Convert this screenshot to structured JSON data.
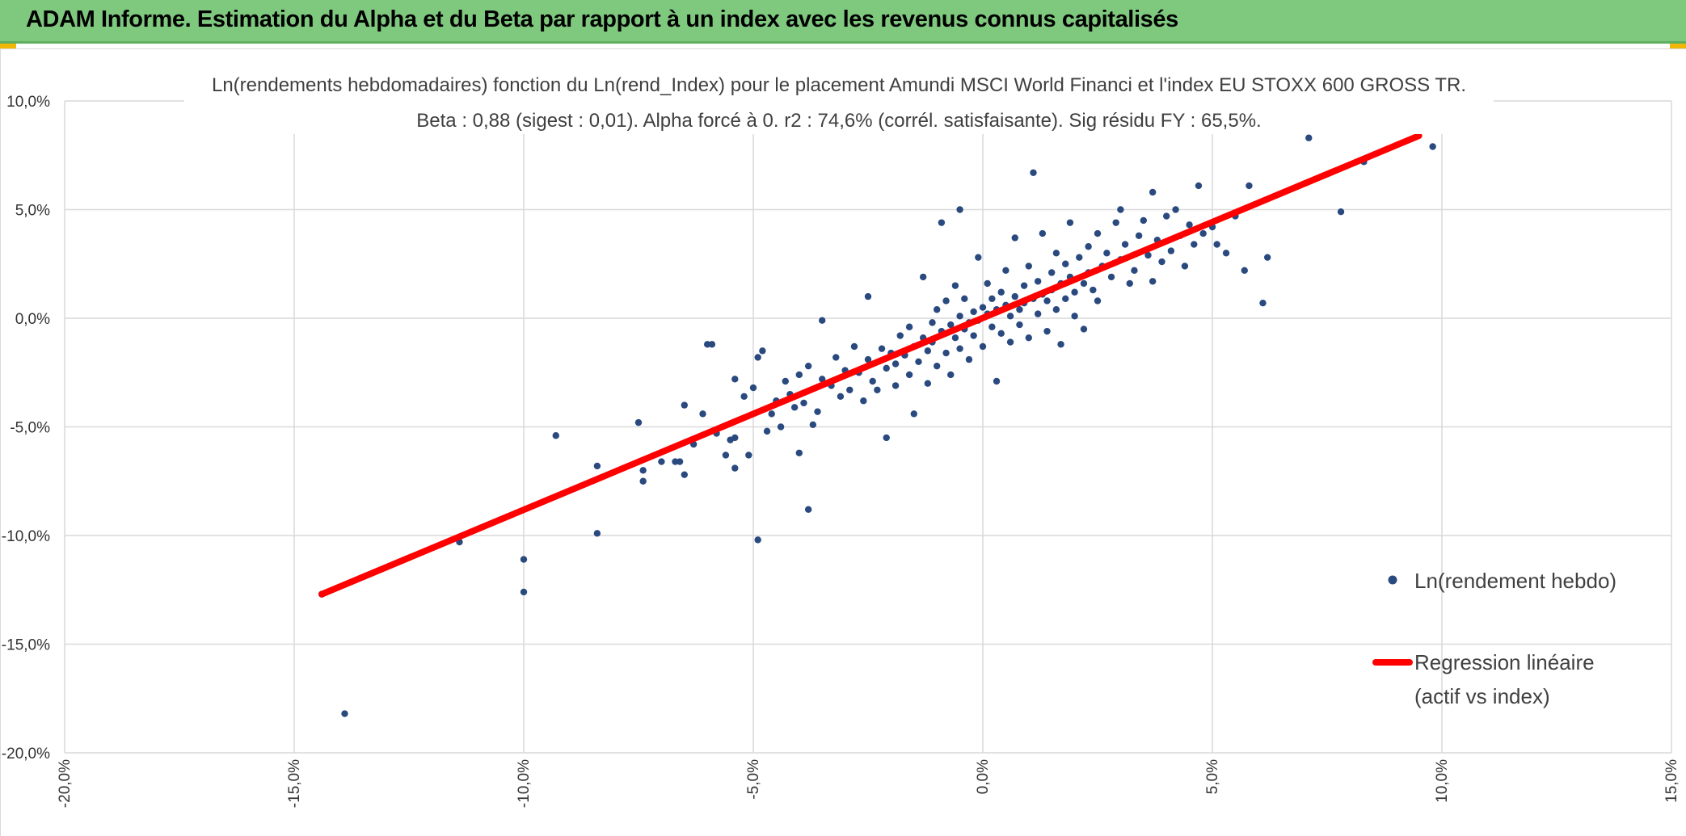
{
  "header": {
    "title": "ADAM Informe. Estimation du Alpha et du Beta par rapport à un index avec les revenus connus capitalisés"
  },
  "colors": {
    "banner": "#7fc97f",
    "points": "#2a4a7f",
    "regression": "#ff0000",
    "grid": "#d9d9d9"
  },
  "chart_data": {
    "type": "scatter",
    "title_lines": [
      "Ln(rendements hebdomadaires) fonction du Ln(rend_Index) pour le placement Amundi MSCI World Financi et l'index EU STOXX 600 GROSS TR.",
      "Beta : 0,88 (sigest : 0,01). Alpha forcé à 0. r2 : 74,6% (corrél. satisfaisante). Sig résidu FY : 65,5%."
    ],
    "xlim": [
      -20,
      15
    ],
    "ylim": [
      -20,
      10
    ],
    "x_ticks": [
      "-20,0%",
      "-15,0%",
      "-10,0%",
      "-5,0%",
      "0,0%",
      "5,0%",
      "10,0%",
      "15,0%"
    ],
    "y_ticks": [
      "10,0%",
      "5,0%",
      "0,0%",
      "-5,0%",
      "-10,0%",
      "-15,0%",
      "-20,0%"
    ],
    "grid": true,
    "legend_position": "right",
    "series": [
      {
        "name": "Ln(rendement hebdo)",
        "kind": "scatter",
        "points": [
          [
            -14.4,
            -12.7
          ],
          [
            -13.9,
            -18.2
          ],
          [
            -11.4,
            -10.3
          ],
          [
            -10.0,
            -11.1
          ],
          [
            -10.0,
            -12.6
          ],
          [
            -9.3,
            -5.4
          ],
          [
            -8.4,
            -6.8
          ],
          [
            -8.4,
            -9.9
          ],
          [
            -7.5,
            -4.8
          ],
          [
            -7.4,
            -7.0
          ],
          [
            -7.4,
            -7.5
          ],
          [
            -7.0,
            -6.6
          ],
          [
            -6.7,
            -6.6
          ],
          [
            -6.6,
            -6.6
          ],
          [
            -6.5,
            -4.0
          ],
          [
            -6.5,
            -7.2
          ],
          [
            -6.3,
            -5.8
          ],
          [
            -6.1,
            -4.4
          ],
          [
            -6.0,
            -1.2
          ],
          [
            -5.9,
            -1.2
          ],
          [
            -5.8,
            -5.3
          ],
          [
            -5.6,
            -6.3
          ],
          [
            -5.5,
            -5.6
          ],
          [
            -5.4,
            -6.9
          ],
          [
            -5.4,
            -5.5
          ],
          [
            -5.4,
            -2.8
          ],
          [
            -5.2,
            -3.6
          ],
          [
            -5.1,
            -6.3
          ],
          [
            -5.0,
            -3.2
          ],
          [
            -4.9,
            -1.8
          ],
          [
            -4.9,
            -10.2
          ],
          [
            -4.8,
            -1.5
          ],
          [
            -4.7,
            -5.2
          ],
          [
            -4.6,
            -4.4
          ],
          [
            -4.5,
            -3.8
          ],
          [
            -4.4,
            -5.0
          ],
          [
            -4.3,
            -2.9
          ],
          [
            -4.2,
            -3.5
          ],
          [
            -4.1,
            -4.1
          ],
          [
            -4.0,
            -6.2
          ],
          [
            -4.0,
            -2.6
          ],
          [
            -3.9,
            -3.9
          ],
          [
            -3.8,
            -2.2
          ],
          [
            -3.8,
            -8.8
          ],
          [
            -3.7,
            -4.9
          ],
          [
            -3.6,
            -4.3
          ],
          [
            -3.5,
            -2.8
          ],
          [
            -3.5,
            -0.1
          ],
          [
            -3.3,
            -3.1
          ],
          [
            -3.2,
            -1.8
          ],
          [
            -3.1,
            -3.6
          ],
          [
            -3.0,
            -2.4
          ],
          [
            -2.9,
            -3.3
          ],
          [
            -2.8,
            -1.3
          ],
          [
            -2.7,
            -2.5
          ],
          [
            -2.6,
            -3.8
          ],
          [
            -2.5,
            1.0
          ],
          [
            -2.5,
            -1.9
          ],
          [
            -2.4,
            -2.9
          ],
          [
            -2.3,
            -3.3
          ],
          [
            -2.2,
            -1.4
          ],
          [
            -2.1,
            -2.3
          ],
          [
            -2.1,
            -5.5
          ],
          [
            -2.0,
            -1.6
          ],
          [
            -1.9,
            -2.1
          ],
          [
            -1.9,
            -3.1
          ],
          [
            -1.8,
            -0.8
          ],
          [
            -1.7,
            -1.7
          ],
          [
            -1.6,
            -2.6
          ],
          [
            -1.6,
            -0.4
          ],
          [
            -1.5,
            -1.3
          ],
          [
            -1.5,
            -4.4
          ],
          [
            -1.4,
            -2.0
          ],
          [
            -1.3,
            -0.9
          ],
          [
            -1.3,
            1.9
          ],
          [
            -1.2,
            -1.5
          ],
          [
            -1.2,
            -3.0
          ],
          [
            -1.1,
            -0.2
          ],
          [
            -1.1,
            -1.1
          ],
          [
            -1.0,
            -2.2
          ],
          [
            -1.0,
            0.4
          ],
          [
            -0.9,
            -0.6
          ],
          [
            -0.9,
            4.4
          ],
          [
            -0.8,
            -1.6
          ],
          [
            -0.8,
            0.8
          ],
          [
            -0.7,
            -0.3
          ],
          [
            -0.7,
            -2.6
          ],
          [
            -0.6,
            -0.9
          ],
          [
            -0.6,
            1.5
          ],
          [
            -0.5,
            0.1
          ],
          [
            -0.5,
            -1.4
          ],
          [
            -0.5,
            5.0
          ],
          [
            -0.4,
            -0.5
          ],
          [
            -0.4,
            0.9
          ],
          [
            -0.3,
            -0.2
          ],
          [
            -0.3,
            -1.9
          ],
          [
            -0.2,
            0.3
          ],
          [
            -0.2,
            -0.8
          ],
          [
            -0.1,
            2.8
          ],
          [
            -0.1,
            -0.1
          ],
          [
            0.0,
            0.5
          ],
          [
            0.0,
            -1.3
          ],
          [
            0.1,
            0.2
          ],
          [
            0.1,
            1.6
          ],
          [
            0.2,
            -0.4
          ],
          [
            0.2,
            0.9
          ],
          [
            0.3,
            -2.9
          ],
          [
            0.3,
            0.4
          ],
          [
            0.4,
            1.2
          ],
          [
            0.4,
            -0.7
          ],
          [
            0.5,
            0.6
          ],
          [
            0.5,
            2.2
          ],
          [
            0.6,
            0.1
          ],
          [
            0.6,
            -1.1
          ],
          [
            0.7,
            1.0
          ],
          [
            0.7,
            3.7
          ],
          [
            0.8,
            0.4
          ],
          [
            0.8,
            -0.3
          ],
          [
            0.9,
            1.5
          ],
          [
            0.9,
            0.7
          ],
          [
            1.0,
            -0.9
          ],
          [
            1.0,
            2.4
          ],
          [
            1.1,
            0.9
          ],
          [
            1.1,
            6.7
          ],
          [
            1.2,
            0.2
          ],
          [
            1.2,
            1.7
          ],
          [
            1.3,
            1.1
          ],
          [
            1.3,
            3.9
          ],
          [
            1.4,
            -0.6
          ],
          [
            1.4,
            0.8
          ],
          [
            1.5,
            2.1
          ],
          [
            1.5,
            1.3
          ],
          [
            1.6,
            0.4
          ],
          [
            1.6,
            3.0
          ],
          [
            1.7,
            1.6
          ],
          [
            1.7,
            -1.2
          ],
          [
            1.8,
            0.9
          ],
          [
            1.8,
            2.5
          ],
          [
            1.9,
            1.9
          ],
          [
            1.9,
            4.4
          ],
          [
            2.0,
            1.2
          ],
          [
            2.0,
            0.1
          ],
          [
            2.1,
            2.8
          ],
          [
            2.2,
            1.6
          ],
          [
            2.2,
            -0.5
          ],
          [
            2.3,
            3.3
          ],
          [
            2.3,
            2.1
          ],
          [
            2.4,
            1.3
          ],
          [
            2.5,
            3.9
          ],
          [
            2.5,
            0.8
          ],
          [
            2.6,
            2.4
          ],
          [
            2.7,
            3.0
          ],
          [
            2.8,
            1.9
          ],
          [
            2.9,
            4.4
          ],
          [
            3.0,
            2.7
          ],
          [
            3.0,
            5.0
          ],
          [
            3.1,
            3.4
          ],
          [
            3.2,
            1.6
          ],
          [
            3.3,
            2.2
          ],
          [
            3.4,
            3.8
          ],
          [
            3.5,
            4.5
          ],
          [
            3.6,
            2.9
          ],
          [
            3.7,
            1.7
          ],
          [
            3.7,
            5.8
          ],
          [
            3.8,
            3.6
          ],
          [
            3.9,
            2.6
          ],
          [
            4.0,
            4.7
          ],
          [
            4.1,
            3.1
          ],
          [
            4.2,
            5.0
          ],
          [
            4.3,
            3.8
          ],
          [
            4.4,
            2.4
          ],
          [
            4.5,
            4.3
          ],
          [
            4.6,
            3.4
          ],
          [
            4.7,
            6.1
          ],
          [
            4.8,
            3.9
          ],
          [
            5.0,
            4.2
          ],
          [
            5.1,
            3.4
          ],
          [
            5.3,
            3.0
          ],
          [
            5.5,
            4.7
          ],
          [
            5.7,
            2.2
          ],
          [
            5.8,
            6.1
          ],
          [
            6.1,
            0.7
          ],
          [
            6.2,
            2.8
          ],
          [
            7.1,
            8.3
          ],
          [
            7.8,
            4.9
          ],
          [
            8.3,
            7.2
          ],
          [
            9.8,
            7.9
          ]
        ]
      },
      {
        "name": "Regression linéaire (actif vs index)",
        "kind": "line",
        "points": [
          [
            -14.4,
            -12.7
          ],
          [
            9.5,
            8.4
          ]
        ]
      }
    ]
  },
  "legend": {
    "scatter_label": "Ln(rendement hebdo)",
    "line_label_1": "Regression linéaire",
    "line_label_2": "(actif vs index)"
  }
}
